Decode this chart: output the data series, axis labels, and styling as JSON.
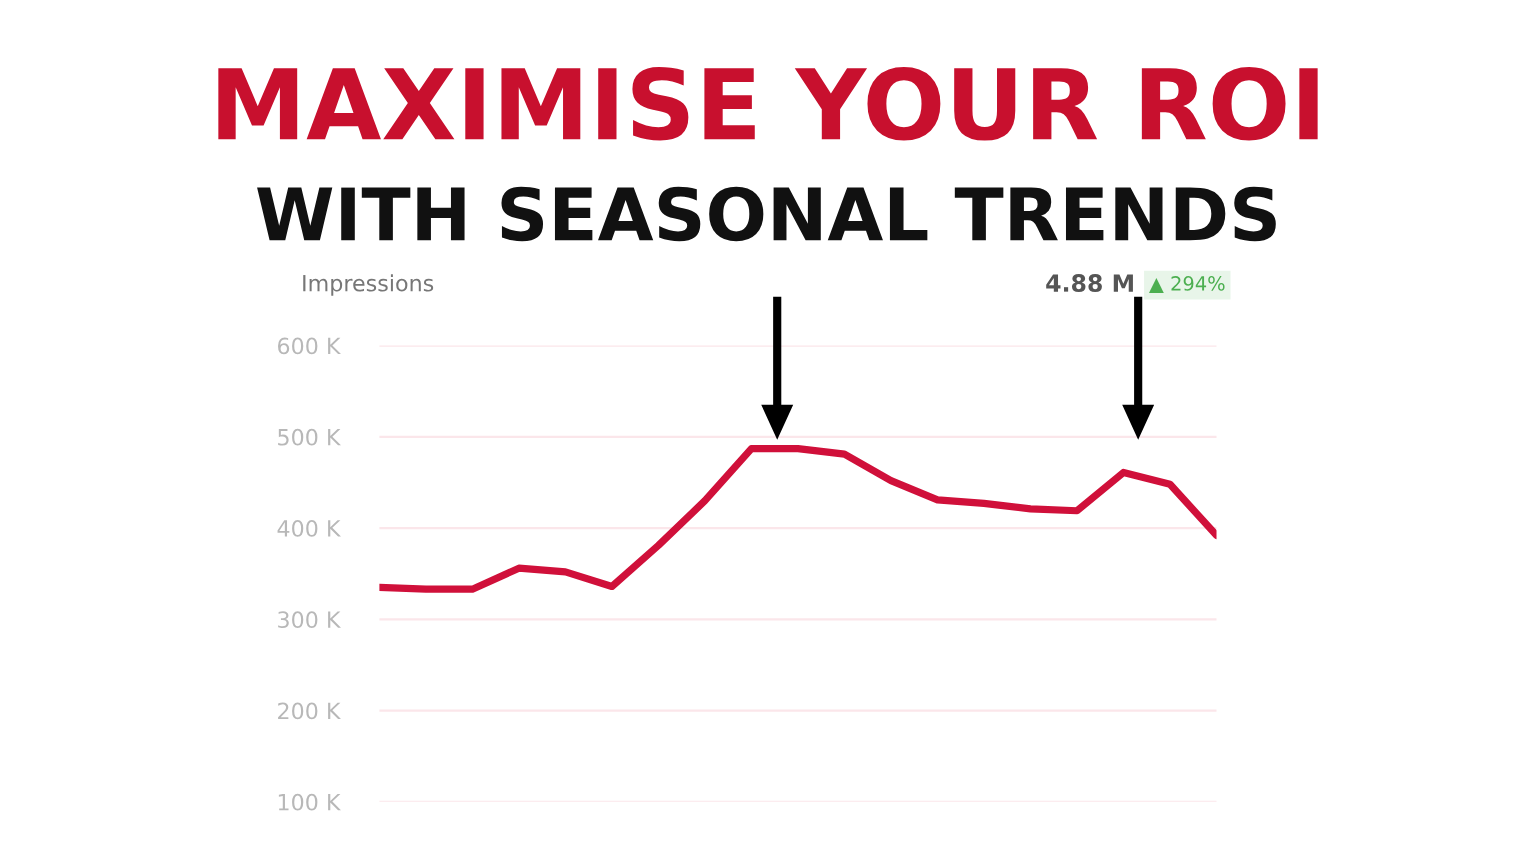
{
  "chart_data": {
    "type": "line",
    "title": "MAXIMISE YOUR ROI",
    "subtitle": "WITH SEASONAL TRENDS",
    "ylabel": "Impressions",
    "annotations": [
      "4.88 M",
      "▲ 294%"
    ],
    "categories": [
      null,
      null,
      null,
      null,
      null,
      null,
      null,
      null,
      null,
      null,
      null,
      null,
      null,
      null,
      null,
      null,
      null,
      null,
      null
    ],
    "series": [
      {
        "color": "#d0103a",
        "values": [
          335,
          333,
          333,
          356,
          352,
          336,
          381,
          430,
          487,
          487,
          481,
          452,
          431,
          427,
          421,
          419,
          461,
          448,
          392
        ]
      }
    ],
    "ylim": [
      100,
      600
    ],
    "yticks": [
      {
        "value": 100,
        "label": "100 K"
      },
      {
        "value": 200,
        "label": "200 K"
      },
      {
        "value": 300,
        "label": "300 K"
      },
      {
        "value": 400,
        "label": "400 K"
      },
      {
        "value": 500,
        "label": "500 K"
      },
      {
        "value": 600,
        "label": "600 K"
      }
    ],
    "grid": "y",
    "line_style": "solid",
    "marker": "none"
  }
}
